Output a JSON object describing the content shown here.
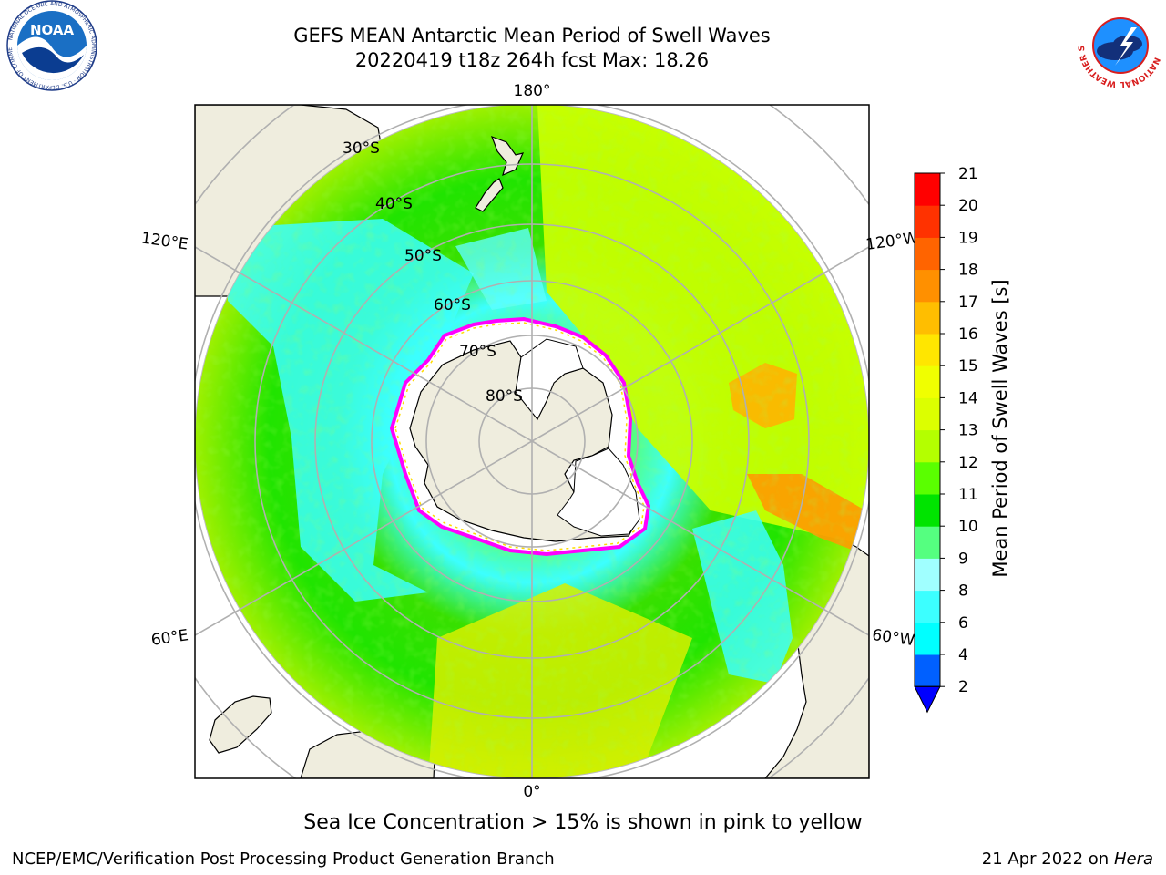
{
  "title": {
    "line1": "GEFS MEAN Antarctic Mean Period of Swell Waves",
    "line2": "20220419 t18z 264h fcst   Max: 18.26"
  },
  "map": {
    "projection": "south-polar-stereographic",
    "longitude_labels": [
      "180°",
      "120°E",
      "120°W",
      "60°E",
      "60°W",
      "0°"
    ],
    "latitude_labels": [
      "30°S",
      "40°S",
      "50°S",
      "60°S",
      "70°S",
      "80°S"
    ],
    "land_color": "#efedde",
    "ice_edge_colors": [
      "#ff00ff",
      "#ffff00"
    ],
    "ocean_pattern": "concentric bands: cyan near ice in Indian/Atlantic sector, green mid-latitudes, yellow/orange in South Pacific"
  },
  "colorbar": {
    "label": "Mean Period of Swell Waves [s]",
    "ticks": [
      "2",
      "4",
      "6",
      "8",
      "9",
      "10",
      "11",
      "12",
      "13",
      "14",
      "15",
      "16",
      "17",
      "18",
      "19",
      "20",
      "21"
    ],
    "colors": [
      "#0060ff",
      "#00ffff",
      "#3cffff",
      "#a0ffff",
      "#55ff80",
      "#00e400",
      "#5aff00",
      "#b4ff00",
      "#dcff00",
      "#f0ff00",
      "#ffe600",
      "#ffbe00",
      "#ff9000",
      "#ff6400",
      "#ff3200",
      "#ff0000"
    ],
    "extend_color": "#0000ff",
    "max_value": 18.26
  },
  "footer": {
    "note": "Sea Ice Concentration > 15% is shown in pink to yellow",
    "credit": "NCEP/EMC/Verification Post Processing Product Generation Branch",
    "date": "21 Apr 2022 on ",
    "system": "Hera"
  },
  "logos": {
    "noaa": "NOAA",
    "noaa_ring": "NATIONAL OCEANIC AND ATMOSPHERIC ADMINISTRATION · U.S. DEPARTMENT OF COMMERCE",
    "nws_ring": "NATIONAL WEATHER SERVICE"
  }
}
